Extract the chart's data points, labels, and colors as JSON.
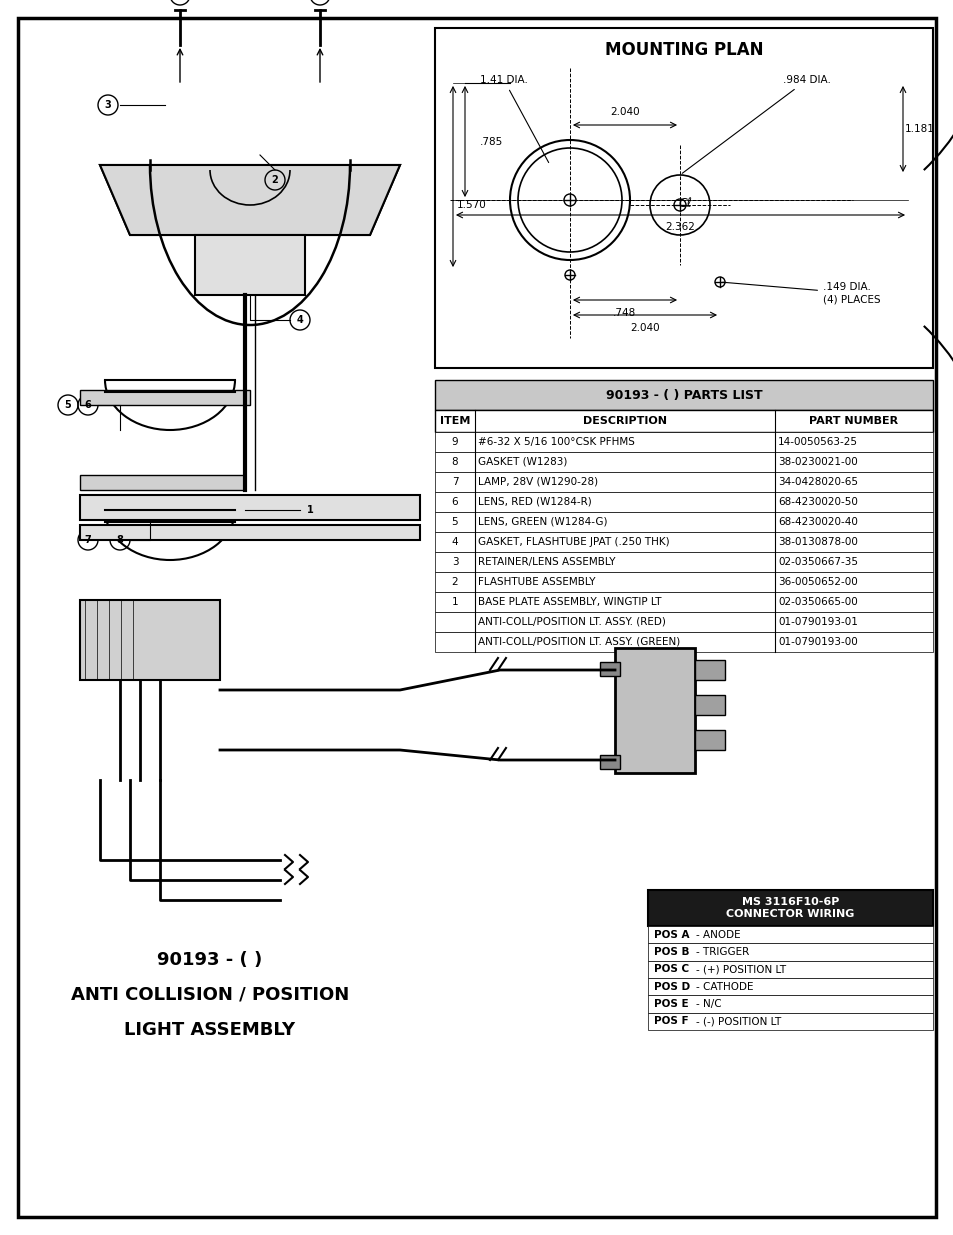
{
  "page_bg": "#ffffff",
  "border_color": "#000000",
  "title": "MOUNTING PLAN",
  "parts_list_title": "90193 - ( ) PARTS LIST",
  "parts_list_header": [
    "ITEM",
    "DESCRIPTION",
    "PART NUMBER"
  ],
  "parts_list_rows": [
    [
      "9",
      "#6-32 X 5/16 100°CSK PFHMS",
      "14-0050563-25"
    ],
    [
      "8",
      "GASKET (W1283)",
      "38-0230021-00"
    ],
    [
      "7",
      "LAMP, 28V (W1290-28)",
      "34-0428020-65"
    ],
    [
      "6",
      "LENS, RED (W1284-R)",
      "68-4230020-50"
    ],
    [
      "5",
      "LENS, GREEN (W1284-G)",
      "68-4230020-40"
    ],
    [
      "4",
      "GASKET, FLASHTUBE JPAT (.250 THK)",
      "38-0130878-00"
    ],
    [
      "3",
      "RETAINER/LENS ASSEMBLY",
      "02-0350667-35"
    ],
    [
      "2",
      "FLASHTUBE ASSEMBLY",
      "36-0050652-00"
    ],
    [
      "1",
      "BASE PLATE ASSEMBLY, WINGTIP LT",
      "02-0350665-00"
    ],
    [
      "",
      "ANTI-COLL/POSITION LT. ASSY. (RED)",
      "01-0790193-01"
    ],
    [
      "",
      "ANTI-COLL/POSITION LT. ASSY. (GREEN)",
      "01-0790193-00"
    ]
  ],
  "connector_title": "MS 3116F10-6P\nCONNECTOR WIRING",
  "connector_rows": [
    "POS A - ANODE",
    "POS B - TRIGGER",
    "POS C - (+) POSITION LT",
    "POS D - CATHODE",
    "POS E - N/C",
    "POS F - (-) POSITION LT"
  ],
  "bottom_title_line1": "90193 - ( )",
  "bottom_title_line2": "ANTI COLLISION / POSITION",
  "bottom_title_line3": "LIGHT ASSEMBLY",
  "dim_color": "#000000",
  "table_header_bg": "#c0c0c0",
  "table_border": "#000000",
  "connector_header_bg": "#1a1a1a",
  "connector_header_fg": "#ffffff",
  "connector_body_bg": "#ffffff"
}
